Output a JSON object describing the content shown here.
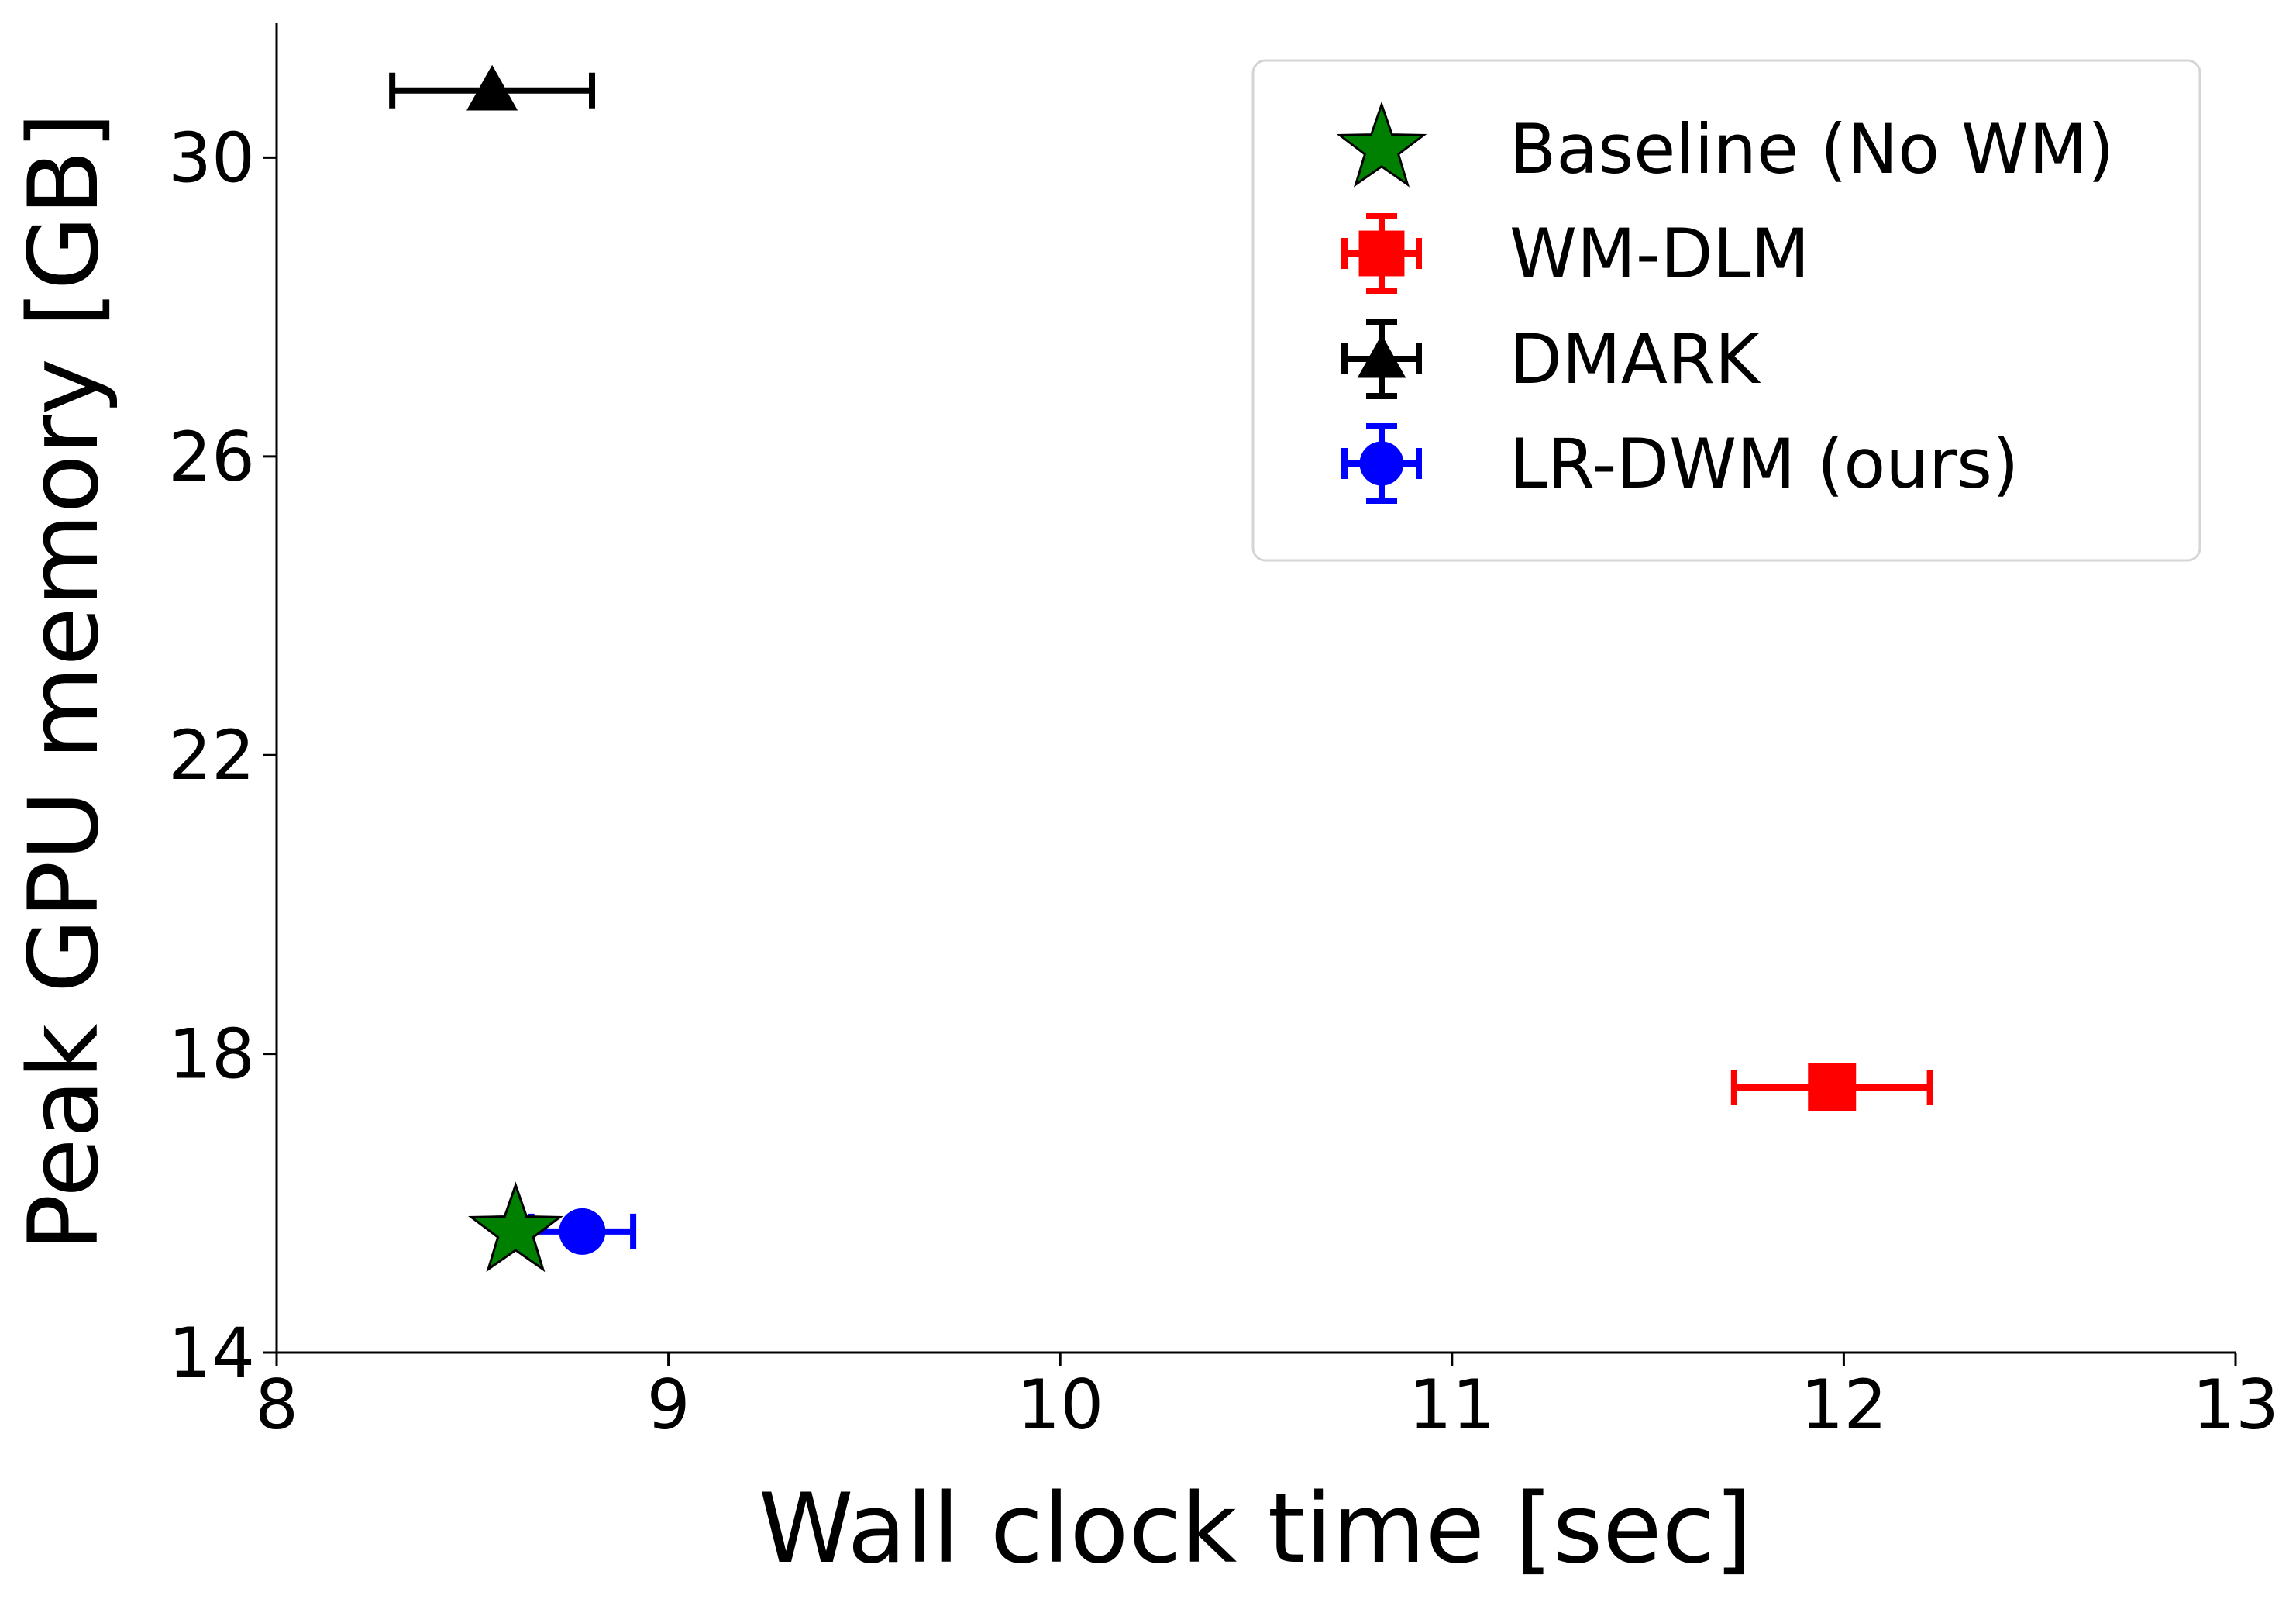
{
  "chart_data": {
    "type": "scatter",
    "title": "",
    "xlabel": "Wall clock time [sec]",
    "ylabel": "Peak GPU memory [GB]",
    "xlim": [
      8,
      13
    ],
    "ylim": [
      14,
      31.8
    ],
    "x_ticks": [
      8,
      9,
      10,
      11,
      12,
      13
    ],
    "y_ticks": [
      14,
      18,
      22,
      26,
      30
    ],
    "grid": false,
    "legend_position": "top-right",
    "series": [
      {
        "name": "Baseline (No WM)",
        "marker": "star",
        "color": "#008000",
        "x": 8.61,
        "y": 15.62,
        "xerr": 0,
        "yerr": 0
      },
      {
        "name": "WM-DLM",
        "marker": "square",
        "color": "#ff0000",
        "x": 11.97,
        "y": 17.55,
        "xerr": 0.25,
        "yerr": 0
      },
      {
        "name": "DMARK",
        "marker": "triangle",
        "color": "#000000",
        "x": 8.55,
        "y": 30.9,
        "xerr": 0.255,
        "yerr": 0
      },
      {
        "name": "LR-DWM (ours)",
        "marker": "circle",
        "color": "#0000ff",
        "x": 8.78,
        "y": 15.62,
        "xerr": 0.13,
        "yerr": 0
      }
    ]
  }
}
